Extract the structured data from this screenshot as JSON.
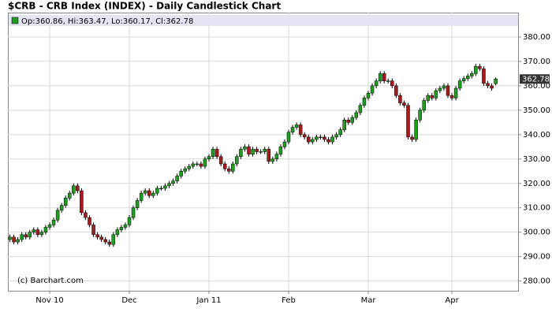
{
  "chart_data": {
    "type": "candlestick",
    "title": "$CRB - CRB Index (INDEX) - Daily Candlestick Chart",
    "info_text": "Op:360.86, Hi:363.47, Lo:360.17, Cl:362.78",
    "watermark": "(c) Barchart.com",
    "up_color": "#1f9e1f",
    "down_color": "#a41c1c",
    "categories": [
      null,
      null,
      null,
      null,
      null,
      null,
      null,
      null,
      null,
      null,
      "Nov 10",
      null,
      null,
      null,
      null,
      null,
      null,
      null,
      null,
      null,
      null,
      null,
      null,
      null,
      null,
      null,
      null,
      null,
      null,
      null,
      "Dec",
      null,
      null,
      null,
      null,
      null,
      null,
      null,
      null,
      null,
      null,
      null,
      null,
      null,
      null,
      null,
      null,
      null,
      null,
      null,
      "Jan 11",
      null,
      null,
      null,
      null,
      null,
      null,
      null,
      null,
      null,
      null,
      null,
      null,
      null,
      null,
      null,
      null,
      null,
      null,
      null,
      "Feb",
      null,
      null,
      null,
      null,
      null,
      null,
      null,
      null,
      null,
      null,
      null,
      null,
      null,
      null,
      null,
      null,
      null,
      null,
      null,
      "Mar",
      null,
      null,
      null,
      null,
      null,
      null,
      null,
      null,
      null,
      null,
      null,
      null,
      null,
      null,
      null,
      null,
      null,
      null,
      null,
      null,
      "Apr",
      null,
      null,
      null,
      null,
      null,
      null,
      null,
      null,
      null,
      null,
      null
    ],
    "open": [
      297,
      298,
      296,
      297,
      299,
      298,
      300,
      301,
      299,
      300,
      302,
      303,
      305,
      309,
      311,
      314,
      316,
      319,
      317,
      308,
      306,
      303,
      299,
      298,
      297,
      296,
      295,
      299,
      301,
      302,
      303,
      306,
      310,
      313,
      316,
      317,
      315,
      316,
      318,
      318,
      319,
      320,
      321,
      323,
      325,
      326,
      327,
      328,
      328,
      327,
      330,
      331,
      334,
      331,
      328,
      326,
      325,
      328,
      331,
      334,
      335,
      332,
      334,
      333,
      333,
      334,
      329,
      330,
      332,
      335,
      337,
      341,
      343,
      344,
      340,
      339,
      337,
      338,
      339,
      339,
      338,
      337,
      339,
      340,
      342,
      346,
      345,
      347,
      349,
      352,
      355,
      357,
      360,
      362,
      365,
      362,
      362,
      360,
      356,
      353,
      352,
      339,
      338,
      346,
      350,
      354,
      356,
      355,
      358,
      359,
      360,
      356,
      355,
      359,
      362,
      363,
      364,
      365,
      368,
      367,
      361,
      360,
      360.86
    ],
    "high": [
      299,
      299,
      298,
      300,
      300,
      301,
      302,
      302,
      301,
      303,
      304,
      306,
      310,
      312,
      315,
      317,
      320,
      320,
      318,
      309,
      307,
      304,
      300,
      299,
      298,
      297,
      300,
      302,
      303,
      304,
      307,
      311,
      314,
      317,
      318,
      318,
      317,
      319,
      319,
      320,
      321,
      322,
      324,
      326,
      327,
      328,
      329,
      329,
      329,
      331,
      332,
      335,
      335,
      332,
      329,
      327,
      329,
      332,
      335,
      336,
      336,
      335,
      335,
      334,
      335,
      335,
      331,
      333,
      336,
      338,
      342,
      344,
      345,
      345,
      341,
      340,
      339,
      340,
      340,
      340,
      339,
      340,
      341,
      343,
      347,
      347,
      348,
      350,
      353,
      356,
      358,
      361,
      363,
      366,
      366,
      363,
      363,
      361,
      357,
      354,
      353,
      340,
      347,
      351,
      355,
      357,
      357,
      359,
      360,
      361,
      361,
      357,
      360,
      363,
      364,
      365,
      366,
      369,
      369,
      368,
      362,
      361,
      363.47
    ],
    "low": [
      296,
      295,
      295,
      296,
      297,
      297,
      299,
      298,
      298,
      299,
      301,
      302,
      304,
      308,
      310,
      313,
      315,
      316,
      307,
      305,
      302,
      298,
      297,
      296,
      295,
      294,
      294,
      298,
      300,
      301,
      302,
      305,
      309,
      312,
      315,
      314,
      314,
      315,
      317,
      317,
      318,
      319,
      320,
      322,
      324,
      325,
      326,
      327,
      326,
      326,
      329,
      330,
      330,
      327,
      325,
      324,
      324,
      327,
      330,
      333,
      331,
      331,
      332,
      332,
      332,
      328,
      328,
      329,
      331,
      334,
      336,
      340,
      342,
      339,
      338,
      336,
      336,
      337,
      338,
      337,
      336,
      336,
      338,
      339,
      341,
      344,
      344,
      346,
      348,
      351,
      354,
      356,
      359,
      361,
      361,
      361,
      359,
      355,
      352,
      351,
      338,
      337,
      337,
      345,
      349,
      353,
      354,
      354,
      357,
      358,
      355,
      354,
      354,
      358,
      361,
      362,
      363,
      364,
      366,
      360,
      359,
      358,
      360.17
    ],
    "close": [
      298,
      296,
      297,
      299,
      298,
      300,
      301,
      299,
      300,
      302,
      303,
      305,
      309,
      311,
      314,
      316,
      319,
      317,
      308,
      306,
      303,
      299,
      298,
      297,
      296,
      295,
      299,
      301,
      302,
      303,
      306,
      310,
      313,
      316,
      317,
      315,
      316,
      318,
      318,
      319,
      320,
      321,
      323,
      325,
      326,
      327,
      328,
      328,
      327,
      330,
      331,
      334,
      331,
      328,
      326,
      325,
      328,
      331,
      334,
      335,
      332,
      334,
      333,
      333,
      334,
      329,
      330,
      332,
      335,
      337,
      341,
      343,
      344,
      340,
      339,
      337,
      338,
      339,
      339,
      338,
      337,
      339,
      340,
      342,
      346,
      345,
      347,
      349,
      352,
      355,
      357,
      360,
      362,
      365,
      362,
      362,
      360,
      356,
      353,
      352,
      339,
      338,
      346,
      350,
      354,
      356,
      355,
      358,
      359,
      360,
      356,
      355,
      359,
      362,
      363,
      364,
      365,
      368,
      367,
      361,
      360,
      359,
      362.78
    ],
    "ylim": [
      276,
      390
    ],
    "yticks": [
      {
        "value": 280,
        "label": "280.00"
      },
      {
        "value": 290,
        "label": "290.00"
      },
      {
        "value": 300,
        "label": "300.00"
      },
      {
        "value": 310,
        "label": "310.00"
      },
      {
        "value": 320,
        "label": "320.00"
      },
      {
        "value": 330,
        "label": "330.00"
      },
      {
        "value": 340,
        "label": "340.00"
      },
      {
        "value": 350,
        "label": "350.00"
      },
      {
        "value": 360,
        "label": "360.00"
      },
      {
        "value": 370,
        "label": "370.00"
      },
      {
        "value": 380,
        "label": "380.00"
      }
    ],
    "grid": true
  }
}
